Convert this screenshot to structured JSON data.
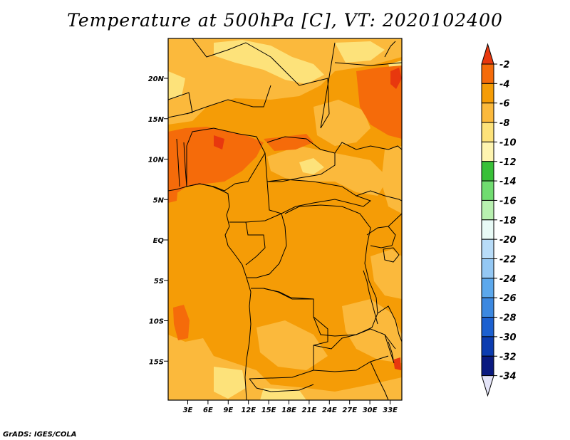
{
  "title": "Temperature at 500hPa [C], VT: 2020102400",
  "credit": "GrADS: IGES/COLA",
  "map": {
    "lat_range": [
      -20,
      25
    ],
    "lon_range": [
      0,
      35
    ],
    "lat_ticks": [
      "20N",
      "15N",
      "10N",
      "5N",
      "EQ",
      "5S",
      "10S",
      "15S"
    ],
    "lon_ticks": [
      "3E",
      "6E",
      "9E",
      "12E",
      "15E",
      "18E",
      "21E",
      "24E",
      "27E",
      "30E",
      "33E"
    ]
  },
  "colorbar": {
    "labels": [
      "-2",
      "-4",
      "-6",
      "-8",
      "-10",
      "-12",
      "-14",
      "-16",
      "-18",
      "-20",
      "-22",
      "-24",
      "-26",
      "-28",
      "-30",
      "-32",
      "-34"
    ],
    "colors": [
      "#e8380e",
      "#f56b0a",
      "#f59c06",
      "#fbb93c",
      "#fde27a",
      "#fef4b0",
      "#38c038",
      "#70dc70",
      "#b8f0b0",
      "#e8faf6",
      "#b8dcf8",
      "#94c8f4",
      "#5ca8ec",
      "#3c88e0",
      "#1c60d0",
      "#0c3cb0",
      "#0a1a80",
      "#e4e4f8"
    ],
    "colors_note": "top triangle, boxes for intervals from top to bottom, bottom triangle"
  },
  "palette": {
    "background": "#f59c06",
    "light": "#fbb93c",
    "pale": "#fde27a",
    "dark": "#f56b0a",
    "hot": "#e8380e"
  }
}
